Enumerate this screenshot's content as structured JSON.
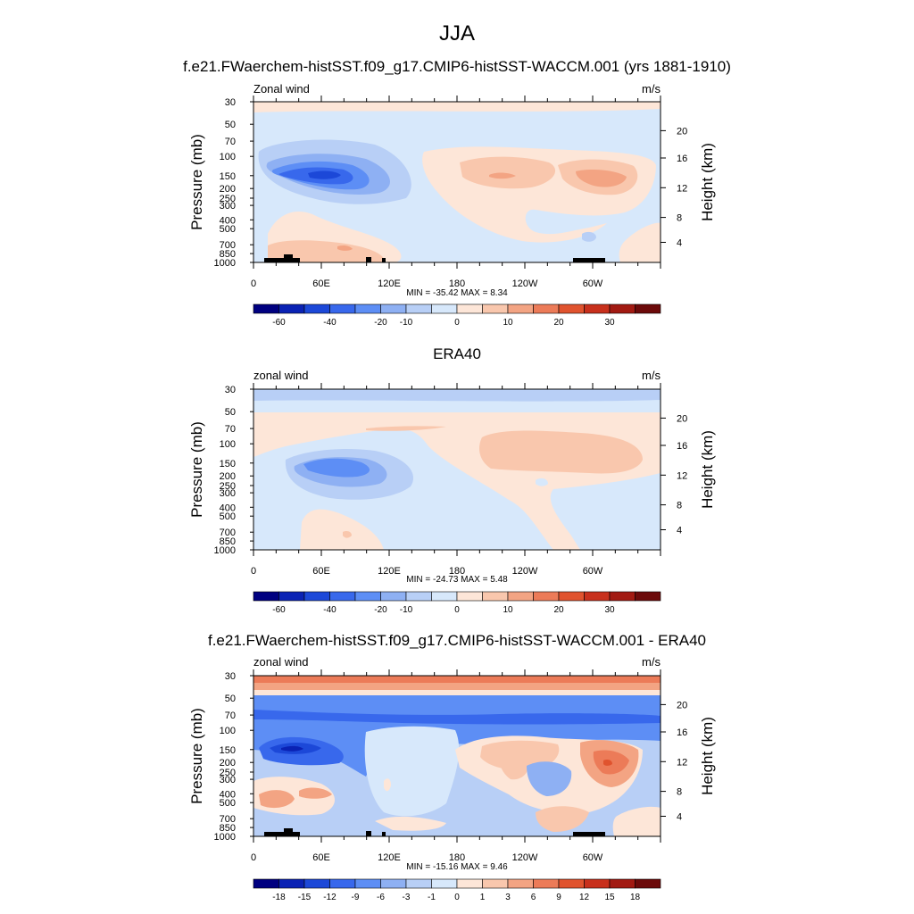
{
  "figure": {
    "title": "JJA"
  },
  "colors": {
    "levels_main": [
      "#000080",
      "#0a22b4",
      "#1c48d8",
      "#3868ec",
      "#5d8ef5",
      "#8eb0f3",
      "#b8cff6",
      "#d7e8fb",
      "#fde6d8",
      "#f9c7ad",
      "#f3a483",
      "#ec7b58",
      "#e0532e",
      "#c8301c",
      "#a21a12",
      "#6c0a0a"
    ],
    "levels_diff": [
      "#000080",
      "#0a22b4",
      "#1c48d8",
      "#3868ec",
      "#5d8ef5",
      "#8eb0f3",
      "#b8cff6",
      "#d7e8fb",
      "#fde6d8",
      "#f9c7ad",
      "#f3a483",
      "#ec7b58",
      "#e0532e",
      "#c8301c",
      "#a21a12",
      "#6c0a0a"
    ],
    "topography": "#000000"
  },
  "axes": {
    "pressure_label": "Pressure (mb)",
    "height_label": "Height (km)",
    "pressure_ticks": [
      "30",
      "50",
      "70",
      "100",
      "150",
      "200",
      "250",
      "300",
      "400",
      "500",
      "700",
      "850",
      "1000"
    ],
    "height_ticks": [
      "20",
      "16",
      "12",
      "8",
      "4"
    ],
    "lon_ticks": [
      "0",
      "60E",
      "120E",
      "180",
      "120W",
      "60W"
    ]
  },
  "chart_data": [
    {
      "type": "heatmap",
      "title": "f.e21.FWaerchem-histSST.f09_g17.CMIP6-histSST-WACCM.001 (yrs 1881-1910)",
      "left_label": "Zonal wind",
      "units": "m/s",
      "stats": "MIN = -35.42  MAX =   8.34",
      "colorbar_labels": [
        "-60",
        "-40",
        "-20",
        "-10",
        "0",
        "10",
        "20",
        "30"
      ],
      "min": -35.42,
      "max": 8.34
    },
    {
      "type": "heatmap",
      "title": "ERA40",
      "left_label": "zonal wind",
      "units": "m/s",
      "stats": "MIN = -24.73  MAX =   5.48",
      "colorbar_labels": [
        "-60",
        "-40",
        "-20",
        "-10",
        "0",
        "10",
        "20",
        "30"
      ],
      "min": -24.73,
      "max": 5.48
    },
    {
      "type": "heatmap",
      "title": "f.e21.FWaerchem-histSST.f09_g17.CMIP6-histSST-WACCM.001 - ERA40",
      "left_label": "zonal wind",
      "units": "m/s",
      "stats": "MIN = -15.16  MAX =   9.46",
      "colorbar_labels": [
        "-18",
        "-15",
        "-12",
        "-9",
        "-6",
        "-3",
        "-1",
        "0",
        "1",
        "3",
        "6",
        "9",
        "12",
        "15",
        "18"
      ],
      "min": -15.16,
      "max": 9.46
    }
  ]
}
